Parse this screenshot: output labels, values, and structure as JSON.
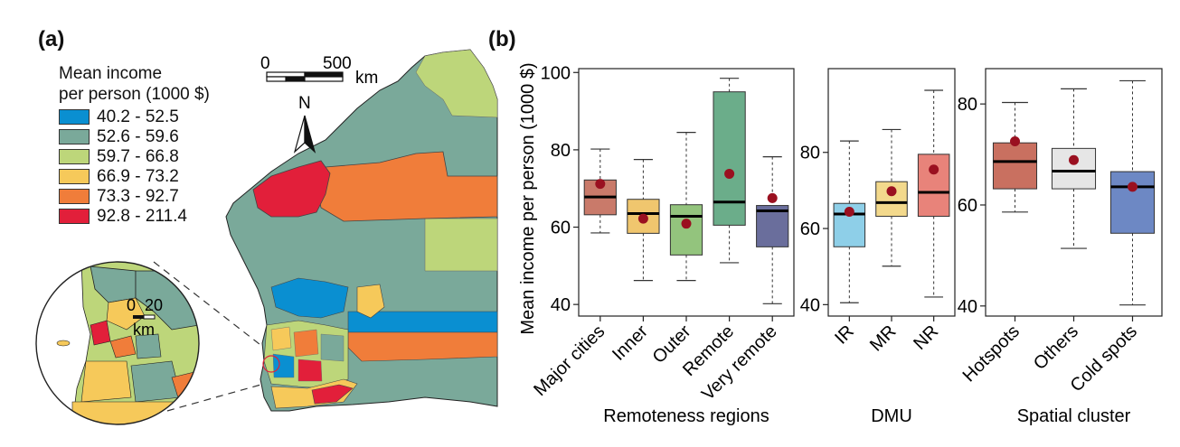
{
  "panel_a": {
    "label": "(a)",
    "legend_title_line1": "Mean income",
    "legend_title_line2": "per person (1000 $)",
    "legend_items": [
      {
        "label": "40.2 - 52.5",
        "color": "#0a8fd1"
      },
      {
        "label": "52.6 - 59.6",
        "color": "#7aa99a"
      },
      {
        "label": "59.7 - 66.8",
        "color": "#bdd67a"
      },
      {
        "label": "66.9 - 73.2",
        "color": "#f6c95a"
      },
      {
        "label": "73.3 - 92.7",
        "color": "#f07d3a"
      },
      {
        "label": "92.8 - 211.4",
        "color": "#e21f3a"
      }
    ],
    "scalebar": {
      "start": "0",
      "end": "500",
      "unit": "km"
    },
    "north": "N",
    "inset_scalebar": {
      "start": "0",
      "end": "20",
      "unit": "km"
    }
  },
  "panel_b": {
    "label": "(b)",
    "ylabel": "Mean income per person (1000 $)"
  },
  "chart_data": [
    {
      "type": "box",
      "xlabel": "Remoteness regions",
      "ylim": [
        37,
        101
      ],
      "yticks": [
        "40",
        "60",
        "80",
        "100"
      ],
      "categories": [
        "Major cities",
        "Inner",
        "Outer",
        "Remote",
        "Very remote"
      ],
      "colors": [
        "#c97a6a",
        "#f0c66e",
        "#93c47d",
        "#6bad8a",
        "#6a6e9c"
      ],
      "boxes": [
        {
          "min": 58.5,
          "q1": 63.2,
          "median": 67.8,
          "q3": 72.2,
          "max": 80.2,
          "mean": 71.2
        },
        {
          "min": 46.2,
          "q1": 58.4,
          "median": 63.5,
          "q3": 67.2,
          "max": 77.5,
          "mean": 62.2
        },
        {
          "min": 46.2,
          "q1": 52.8,
          "median": 62.8,
          "q3": 65.8,
          "max": 84.5,
          "mean": 60.9
        },
        {
          "min": 50.8,
          "q1": 60.5,
          "median": 66.5,
          "q3": 95.0,
          "max": 98.5,
          "mean": 73.8
        },
        {
          "min": 40.2,
          "q1": 54.9,
          "median": 64.2,
          "q3": 65.6,
          "max": 78.2,
          "mean": 67.5
        }
      ]
    },
    {
      "type": "box",
      "xlabel": "DMU",
      "ylim": [
        37,
        102
      ],
      "yticks": [
        "40",
        "60",
        "80"
      ],
      "categories": [
        "IR",
        "MR",
        "NR"
      ],
      "colors": [
        "#8ecfe8",
        "#f3d98c",
        "#e8837a"
      ],
      "boxes": [
        {
          "min": 40.5,
          "q1": 55.2,
          "median": 63.8,
          "q3": 66.6,
          "max": 83.0,
          "mean": 64.4
        },
        {
          "min": 50.1,
          "q1": 63.2,
          "median": 66.8,
          "q3": 72.3,
          "max": 86.0,
          "mean": 69.8
        },
        {
          "min": 42.0,
          "q1": 63.2,
          "median": 69.5,
          "q3": 79.5,
          "max": 96.3,
          "mean": 75.5
        }
      ]
    },
    {
      "type": "box",
      "xlabel": "Spatial cluster",
      "ylim": [
        38,
        87
      ],
      "yticks": [
        "40",
        "60",
        "80"
      ],
      "categories": [
        "Hotspots",
        "Others",
        "Cold spots"
      ],
      "colors": [
        "#c97060",
        "#e6e6e6",
        "#6d88c4"
      ],
      "boxes": [
        {
          "min": 58.6,
          "q1": 63.2,
          "median": 68.6,
          "q3": 72.3,
          "max": 80.3,
          "mean": 72.6
        },
        {
          "min": 51.4,
          "q1": 63.2,
          "median": 66.7,
          "q3": 71.2,
          "max": 83.0,
          "mean": 68.9
        },
        {
          "min": 40.2,
          "q1": 54.4,
          "median": 63.6,
          "q3": 66.6,
          "max": 84.6,
          "mean": 63.6
        }
      ]
    }
  ]
}
